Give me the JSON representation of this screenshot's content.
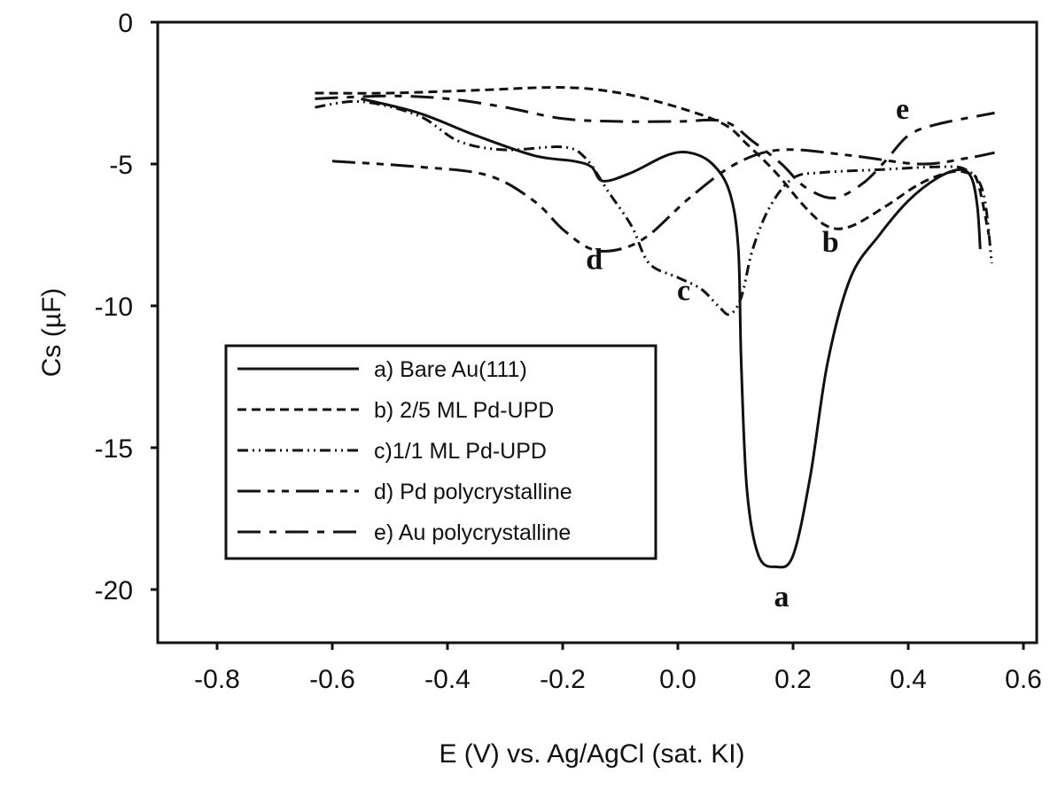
{
  "chart_data": {
    "type": "line",
    "title": "",
    "xlabel": "E (V) vs. Ag/AgCl (sat. KI)",
    "ylabel": "Cs (µF)",
    "xlim": [
      -0.9,
      0.62
    ],
    "ylim": [
      -22,
      0
    ],
    "xticks": [
      -0.8,
      -0.6,
      -0.4,
      -0.2,
      0.0,
      0.2,
      0.4,
      0.6
    ],
    "xtick_labels": [
      "-0.8",
      "-0.6",
      "-0.4",
      "-0.2",
      "0.0",
      "0.2",
      "0.4",
      "0.6"
    ],
    "yticks": [
      0,
      -5,
      -10,
      -15,
      -20
    ],
    "ytick_labels": [
      "0",
      "-5",
      "-10",
      "-15",
      "-20"
    ],
    "grid": false,
    "legend_position": "lower-left",
    "series": [
      {
        "name": "a) Bare Au(111)",
        "tag": "a",
        "dash": "solid",
        "x": [
          -0.55,
          -0.45,
          -0.35,
          -0.25,
          -0.18,
          -0.15,
          -0.13,
          -0.08,
          -0.02,
          0.02,
          0.06,
          0.09,
          0.105,
          0.11,
          0.12,
          0.14,
          0.17,
          0.2,
          0.23,
          0.26,
          0.3,
          0.35,
          0.4,
          0.45,
          0.49,
          0.51,
          0.52,
          0.525
        ],
        "y": [
          -2.7,
          -3.2,
          -4.0,
          -4.7,
          -4.9,
          -5.1,
          -5.6,
          -5.3,
          -4.7,
          -4.6,
          -5.0,
          -6.0,
          -8.0,
          -12,
          -16.5,
          -18.8,
          -19.2,
          -18.8,
          -16,
          -12,
          -9,
          -7.5,
          -6.3,
          -5.5,
          -5.2,
          -5.5,
          -6.5,
          -8.0
        ],
        "label_at": [
          0.18,
          -20.6
        ]
      },
      {
        "name": "b) 2/5 ML Pd-UPD",
        "tag": "b",
        "dash": "short-dash",
        "x": [
          -0.63,
          -0.5,
          -0.35,
          -0.2,
          -0.1,
          0.0,
          0.08,
          0.12,
          0.17,
          0.22,
          0.26,
          0.3,
          0.36,
          0.42,
          0.47,
          0.5,
          0.52,
          0.54
        ],
        "y": [
          -2.5,
          -2.5,
          -2.4,
          -2.3,
          -2.5,
          -3.0,
          -3.6,
          -4.3,
          -5.3,
          -6.5,
          -7.2,
          -7.2,
          -6.5,
          -5.7,
          -5.3,
          -5.3,
          -5.6,
          -7.5
        ],
        "label_at": [
          0.265,
          -8.1
        ]
      },
      {
        "name": "c)1/1 ML Pd-UPD",
        "tag": "c",
        "dash": "dash-dot-dot",
        "x": [
          -0.63,
          -0.55,
          -0.45,
          -0.38,
          -0.3,
          -0.2,
          -0.16,
          -0.12,
          -0.08,
          -0.05,
          0.0,
          0.04,
          0.07,
          0.09,
          0.11,
          0.13,
          0.16,
          0.2,
          0.25,
          0.35,
          0.45,
          0.5,
          0.53,
          0.545
        ],
        "y": [
          -3.0,
          -2.8,
          -3.3,
          -4.2,
          -4.5,
          -4.4,
          -4.8,
          -6.0,
          -7.2,
          -8.5,
          -9.0,
          -9.4,
          -10.0,
          -10.3,
          -9.7,
          -8.0,
          -6.5,
          -5.5,
          -5.3,
          -5.2,
          -5.1,
          -5.2,
          -6.0,
          -8.5
        ],
        "label_at": [
          0.01,
          -9.8
        ]
      },
      {
        "name": "d) Pd polycrystalline",
        "tag": "d",
        "dash": "long-short-short",
        "x": [
          -0.6,
          -0.45,
          -0.33,
          -0.25,
          -0.2,
          -0.15,
          -0.1,
          -0.05,
          0.02,
          0.1,
          0.18,
          0.3,
          0.42,
          0.5,
          0.55
        ],
        "y": [
          -4.9,
          -5.1,
          -5.4,
          -6.3,
          -7.3,
          -8.0,
          -8.0,
          -7.5,
          -6.2,
          -5.0,
          -4.5,
          -4.7,
          -5.0,
          -4.8,
          -4.6
        ],
        "label_at": [
          -0.145,
          -8.7
        ]
      },
      {
        "name": "e) Au polycrystalline",
        "tag": "e",
        "dash": "long-dash",
        "x": [
          -0.63,
          -0.5,
          -0.4,
          -0.3,
          -0.2,
          -0.1,
          0.0,
          0.08,
          0.13,
          0.18,
          0.22,
          0.27,
          0.32,
          0.36,
          0.4,
          0.45,
          0.55
        ],
        "y": [
          -2.7,
          -2.6,
          -2.7,
          -3.0,
          -3.4,
          -3.5,
          -3.5,
          -3.5,
          -4.2,
          -5.0,
          -5.8,
          -6.2,
          -5.7,
          -4.9,
          -4.0,
          -3.6,
          -3.2
        ],
        "label_at": [
          0.39,
          -3.4
        ]
      }
    ]
  }
}
